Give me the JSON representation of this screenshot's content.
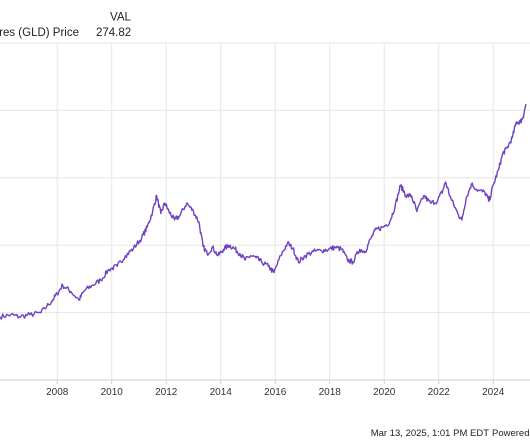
{
  "chart_data": {
    "type": "line",
    "title": "",
    "xlabel": "",
    "ylabel": "",
    "legend": {
      "header": "VAL",
      "series_label": "SPDR Gold Shares (GLD) Price",
      "value_text": "274.82"
    },
    "xlim": [
      2005.9,
      2025.35
    ],
    "ylim": [
      0,
      320
    ],
    "x_ticks": [
      2008,
      2010,
      2012,
      2014,
      2016,
      2018,
      2020,
      2022,
      2024
    ],
    "x_tick_labels": [
      "2008",
      "2010",
      "2012",
      "2014",
      "2016",
      "2018",
      "2020",
      "2022",
      "2024"
    ],
    "y_grid": [
      64,
      128,
      192,
      256
    ],
    "grid": true,
    "series": [
      {
        "name": "SPDR Gold Shares (GLD) Price",
        "color": "#6f42c1",
        "points": [
          [
            2005.9,
            60
          ],
          [
            2006.3,
            62
          ],
          [
            2006.6,
            60
          ],
          [
            2007.0,
            62
          ],
          [
            2007.4,
            64
          ],
          [
            2007.8,
            75
          ],
          [
            2008.0,
            82
          ],
          [
            2008.2,
            90
          ],
          [
            2008.5,
            84
          ],
          [
            2008.8,
            76
          ],
          [
            2009.0,
            85
          ],
          [
            2009.3,
            90
          ],
          [
            2009.6,
            95
          ],
          [
            2009.9,
            105
          ],
          [
            2010.2,
            108
          ],
          [
            2010.5,
            118
          ],
          [
            2010.8,
            125
          ],
          [
            2011.1,
            135
          ],
          [
            2011.3,
            145
          ],
          [
            2011.5,
            160
          ],
          [
            2011.65,
            175
          ],
          [
            2011.8,
            158
          ],
          [
            2011.95,
            168
          ],
          [
            2012.1,
            160
          ],
          [
            2012.3,
            152
          ],
          [
            2012.5,
            156
          ],
          [
            2012.75,
            168
          ],
          [
            2013.0,
            160
          ],
          [
            2013.2,
            150
          ],
          [
            2013.35,
            127
          ],
          [
            2013.5,
            120
          ],
          [
            2013.7,
            126
          ],
          [
            2013.9,
            118
          ],
          [
            2014.1,
            124
          ],
          [
            2014.3,
            128
          ],
          [
            2014.5,
            125
          ],
          [
            2014.7,
            120
          ],
          [
            2014.9,
            114
          ],
          [
            2015.1,
            118
          ],
          [
            2015.3,
            116
          ],
          [
            2015.5,
            112
          ],
          [
            2015.75,
            108
          ],
          [
            2015.95,
            102
          ],
          [
            2016.2,
            118
          ],
          [
            2016.45,
            130
          ],
          [
            2016.65,
            125
          ],
          [
            2016.85,
            112
          ],
          [
            2017.1,
            118
          ],
          [
            2017.4,
            122
          ],
          [
            2017.7,
            123
          ],
          [
            2017.95,
            124
          ],
          [
            2018.2,
            126
          ],
          [
            2018.45,
            124
          ],
          [
            2018.65,
            114
          ],
          [
            2018.85,
            112
          ],
          [
            2019.1,
            124
          ],
          [
            2019.3,
            122
          ],
          [
            2019.5,
            134
          ],
          [
            2019.7,
            143
          ],
          [
            2019.95,
            145
          ],
          [
            2020.2,
            150
          ],
          [
            2020.4,
            165
          ],
          [
            2020.6,
            185
          ],
          [
            2020.8,
            175
          ],
          [
            2021.0,
            175
          ],
          [
            2021.2,
            160
          ],
          [
            2021.45,
            175
          ],
          [
            2021.7,
            168
          ],
          [
            2021.95,
            170
          ],
          [
            2022.15,
            180
          ],
          [
            2022.25,
            188
          ],
          [
            2022.45,
            172
          ],
          [
            2022.7,
            158
          ],
          [
            2022.85,
            152
          ],
          [
            2023.0,
            172
          ],
          [
            2023.2,
            186
          ],
          [
            2023.45,
            180
          ],
          [
            2023.7,
            178
          ],
          [
            2023.85,
            170
          ],
          [
            2024.0,
            185
          ],
          [
            2024.2,
            200
          ],
          [
            2024.35,
            215
          ],
          [
            2024.5,
            220
          ],
          [
            2024.7,
            230
          ],
          [
            2024.85,
            245
          ],
          [
            2025.0,
            245
          ],
          [
            2025.1,
            250
          ],
          [
            2025.2,
            262
          ]
        ]
      }
    ]
  },
  "footer": {
    "timestamp": "Mar 13, 2025, 1:01 PM EDT",
    "powered_by": "Powered by"
  }
}
